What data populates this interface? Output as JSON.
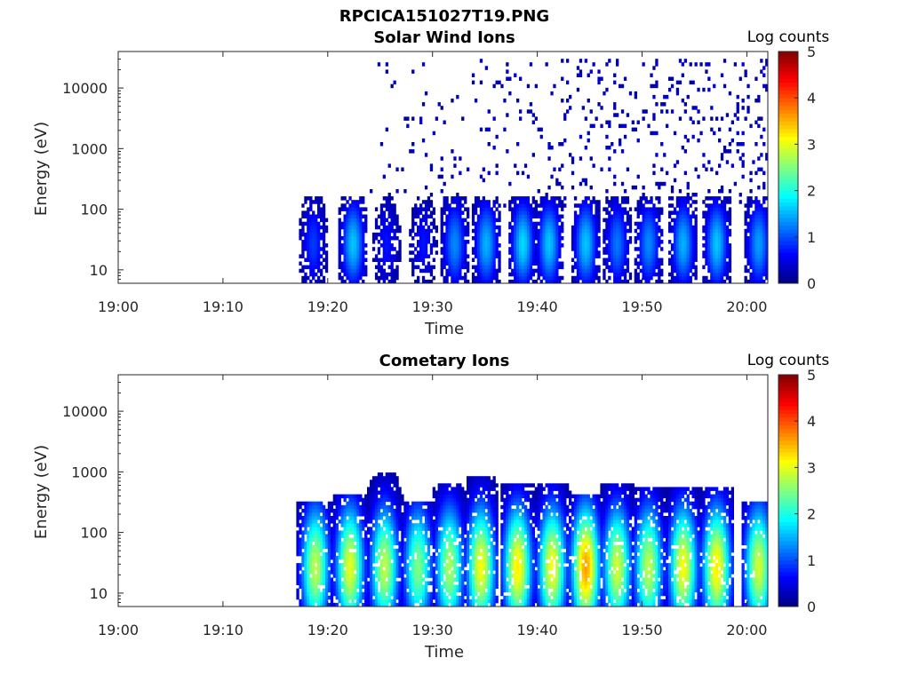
{
  "figure": {
    "title": "RPCICA151027T19.PNG"
  },
  "chart_data": [
    {
      "type": "heatmap",
      "title": "Solar Wind Ions",
      "xlabel": "Time",
      "ylabel": "Energy (eV)",
      "y_scale": "log",
      "ylim": [
        6,
        40000
      ],
      "xlim": [
        "19:00",
        "20:02"
      ],
      "x_ticks": [
        "19:00",
        "19:10",
        "19:20",
        "19:30",
        "19:40",
        "19:50",
        "20:00"
      ],
      "y_ticks": [
        "10",
        "100",
        "1000",
        "10000"
      ],
      "colorbar": {
        "label": "Log counts",
        "range": [
          0,
          5
        ],
        "ticks": [
          "0",
          "1",
          "2",
          "3",
          "4",
          "5"
        ],
        "colormap": "jet"
      },
      "grid": false,
      "bursts": [
        {
          "time": "19:18.5",
          "peak_log_counts": 0.9
        },
        {
          "time": "19:22.3",
          "peak_log_counts": 1.6
        },
        {
          "time": "19:25.5",
          "peak_log_counts": 0.7
        },
        {
          "time": "19:29.0",
          "peak_log_counts": 0.7
        },
        {
          "time": "19:32.0",
          "peak_log_counts": 1.3
        },
        {
          "time": "19:35.0",
          "peak_log_counts": 1.5
        },
        {
          "time": "19:38.5",
          "peak_log_counts": 1.7
        },
        {
          "time": "19:41.0",
          "peak_log_counts": 1.6
        },
        {
          "time": "19:44.5",
          "peak_log_counts": 1.6
        },
        {
          "time": "19:47.5",
          "peak_log_counts": 1.2
        },
        {
          "time": "19:50.5",
          "peak_log_counts": 1.3
        },
        {
          "time": "19:53.8",
          "peak_log_counts": 1.5
        },
        {
          "time": "19:57.0",
          "peak_log_counts": 1.6
        },
        {
          "time": "20:01.0",
          "peak_log_counts": 1.4
        }
      ],
      "background_counts": {
        "start": "19:24",
        "end": "20:02",
        "log_counts": 0.4,
        "energy_range": [
          100,
          30000
        ]
      }
    },
    {
      "type": "heatmap",
      "title": "Cometary Ions",
      "xlabel": "Time",
      "ylabel": "Energy (eV)",
      "y_scale": "log",
      "ylim": [
        6,
        40000
      ],
      "xlim": [
        "19:00",
        "20:02"
      ],
      "x_ticks": [
        "19:00",
        "19:10",
        "19:20",
        "19:30",
        "19:40",
        "19:50",
        "20:00"
      ],
      "y_ticks": [
        "10",
        "100",
        "1000",
        "10000"
      ],
      "colorbar": {
        "label": "Log counts",
        "range": [
          0,
          5
        ],
        "ticks": [
          "0",
          "1",
          "2",
          "3",
          "4",
          "5"
        ],
        "colormap": "jet"
      },
      "grid": false,
      "bursts": [
        {
          "time": "19:18.7",
          "peak_log_counts": 2.8,
          "max_energy": 250
        },
        {
          "time": "19:22.0",
          "peak_log_counts": 3.0,
          "max_energy": 300
        },
        {
          "time": "19:25.3",
          "peak_log_counts": 2.8,
          "max_energy": 700
        },
        {
          "time": "19:28.5",
          "peak_log_counts": 2.5,
          "max_energy": 250
        },
        {
          "time": "19:31.5",
          "peak_log_counts": 2.7,
          "max_energy": 500
        },
        {
          "time": "19:34.5",
          "peak_log_counts": 3.1,
          "max_energy": 600
        },
        {
          "time": "19:38.0",
          "peak_log_counts": 3.2,
          "max_energy": 500
        },
        {
          "time": "19:41.3",
          "peak_log_counts": 3.1,
          "max_energy": 500
        },
        {
          "time": "19:44.5",
          "peak_log_counts": 3.6,
          "max_energy": 300
        },
        {
          "time": "19:47.5",
          "peak_log_counts": 2.9,
          "max_energy": 500
        },
        {
          "time": "19:50.5",
          "peak_log_counts": 2.8,
          "max_energy": 400
        },
        {
          "time": "19:53.8",
          "peak_log_counts": 3.1,
          "max_energy": 400
        },
        {
          "time": "19:57.0",
          "peak_log_counts": 3.2,
          "max_energy": 400
        },
        {
          "time": "20:01.0",
          "peak_log_counts": 2.9,
          "max_energy": 250
        }
      ]
    }
  ]
}
